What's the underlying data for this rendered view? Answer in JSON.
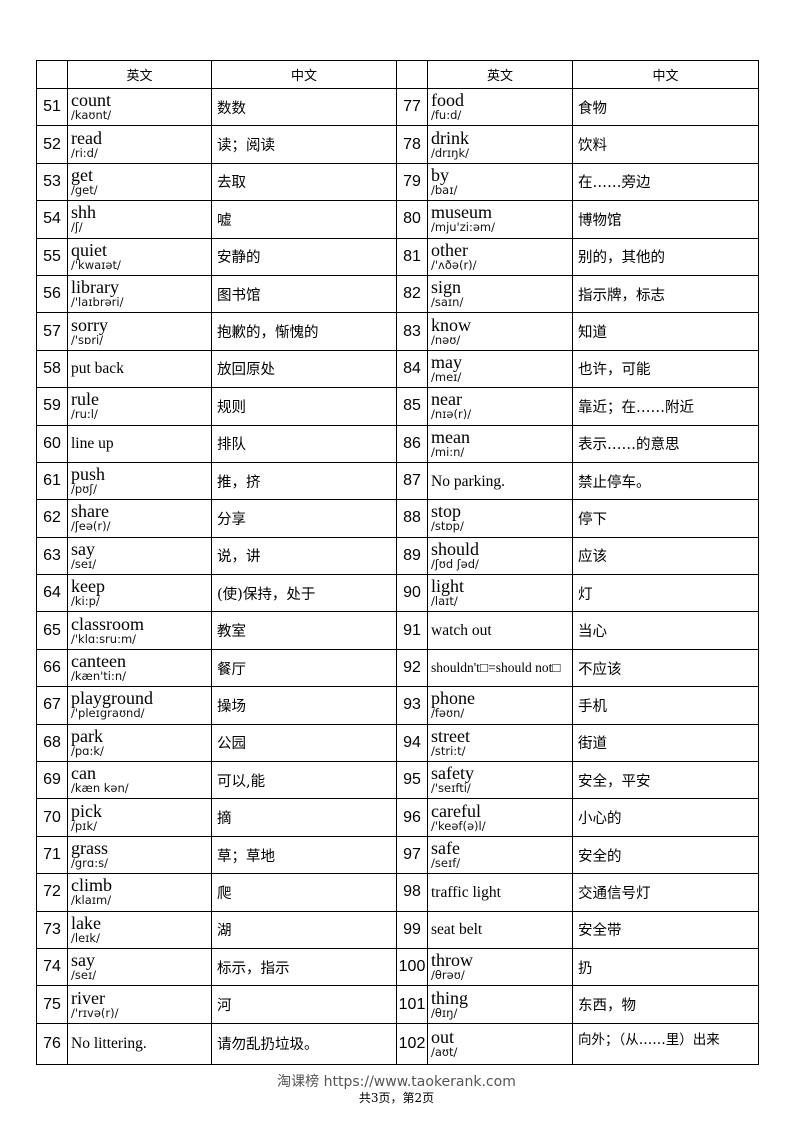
{
  "header": {
    "col_en": "英文",
    "col_cn": "中文"
  },
  "left": [
    {
      "num": "51",
      "word": "count",
      "phon": "/kaʊnt/",
      "cn": "数数"
    },
    {
      "num": "52",
      "word": "read",
      "phon": "/ri:d/",
      "cn": "读；阅读"
    },
    {
      "num": "53",
      "word": "get",
      "phon": "/get/",
      "cn": "去取"
    },
    {
      "num": "54",
      "word": "shh",
      "phon": "/ʃ/",
      "cn": "嘘"
    },
    {
      "num": "55",
      "word": "quiet",
      "phon": "/'kwaɪət/",
      "cn": "安静的"
    },
    {
      "num": "56",
      "word": "library",
      "phon": "/'laɪbrəri/",
      "cn": "图书馆"
    },
    {
      "num": "57",
      "word": "sorry",
      "phon": "/'sɒri/",
      "cn": "抱歉的，惭愧的"
    },
    {
      "num": "58",
      "word": "put back",
      "phon": "",
      "cn": "放回原处"
    },
    {
      "num": "59",
      "word": "rule",
      "phon": "/ru:l/",
      "cn": "规则"
    },
    {
      "num": "60",
      "word": "line up",
      "phon": "",
      "cn": "排队"
    },
    {
      "num": "61",
      "word": "push",
      "phon": "/pʊʃ/",
      "cn": "推，挤"
    },
    {
      "num": "62",
      "word": "share",
      "phon": "/ʃeə(r)/",
      "cn": "分享"
    },
    {
      "num": "63",
      "word": "say",
      "phon": "/seɪ/",
      "cn": "说，讲"
    },
    {
      "num": "64",
      "word": "keep",
      "phon": "/ki:p/",
      "cn": "(使)保持，处于"
    },
    {
      "num": "65",
      "word": "classroom",
      "phon": "/'klɑ:sru:m/",
      "cn": "教室"
    },
    {
      "num": "66",
      "word": "canteen",
      "phon": "/kæn'ti:n/",
      "cn": "餐厅"
    },
    {
      "num": "67",
      "word": "playground",
      "phon": "/'pleɪgraʊnd/",
      "cn": "操场"
    },
    {
      "num": "68",
      "word": "park",
      "phon": "/pɑ:k/",
      "cn": "公园"
    },
    {
      "num": "69",
      "word": "can",
      "phon": "/kæn kən/",
      "cn": "可以,能"
    },
    {
      "num": "70",
      "word": "pick",
      "phon": "/pɪk/",
      "cn": "摘"
    },
    {
      "num": "71",
      "word": "grass",
      "phon": "/grɑ:s/",
      "cn": "草；草地"
    },
    {
      "num": "72",
      "word": "climb",
      "phon": "/klaɪm/",
      "cn": "爬"
    },
    {
      "num": "73",
      "word": "lake",
      "phon": "/leɪk/",
      "cn": "湖"
    },
    {
      "num": "74",
      "word": "say",
      "phon": "/seɪ/",
      "cn": "标示，指示"
    },
    {
      "num": "75",
      "word": "river",
      "phon": "/'rɪvə(r)/",
      "cn": "河"
    },
    {
      "num": "76",
      "word": "No littering.",
      "phon": "",
      "cn": "请勿乱扔垃圾。"
    }
  ],
  "right": [
    {
      "num": "77",
      "word": "food",
      "phon": "/fu:d/",
      "cn": "食物"
    },
    {
      "num": "78",
      "word": "drink",
      "phon": "/drɪŋk/",
      "cn": "饮料"
    },
    {
      "num": "79",
      "word": "by",
      "phon": "/baɪ/",
      "cn": "在……旁边"
    },
    {
      "num": "80",
      "word": "museum",
      "phon": "/mju'zi:əm/",
      "cn": "博物馆"
    },
    {
      "num": "81",
      "word": "other",
      "phon": "/'ʌðə(r)/",
      "cn": "别的，其他的"
    },
    {
      "num": "82",
      "word": "sign",
      "phon": "/saɪn/",
      "cn": "指示牌，标志"
    },
    {
      "num": "83",
      "word": "know",
      "phon": "/nəʊ/",
      "cn": "知道"
    },
    {
      "num": "84",
      "word": "may",
      "phon": "/meɪ/",
      "cn": "也许，可能"
    },
    {
      "num": "85",
      "word": "near",
      "phon": "/nɪə(r)/",
      "cn": "靠近；在……附近"
    },
    {
      "num": "86",
      "word": "mean",
      "phon": "/mi:n/",
      "cn": "表示……的意思"
    },
    {
      "num": "87",
      "word": "No parking.",
      "phon": "",
      "cn": "禁止停车。"
    },
    {
      "num": "88",
      "word": "stop",
      "phon": "/stɒp/",
      "cn": "停下"
    },
    {
      "num": "89",
      "word": "should",
      "phon": "/ʃʊd ʃəd/",
      "cn": "应该"
    },
    {
      "num": "90",
      "word": "light",
      "phon": "/laɪt/",
      "cn": "灯"
    },
    {
      "num": "91",
      "word": "watch out",
      "phon": "",
      "cn": "当心"
    },
    {
      "num": "92",
      "word": "shouldn't□=should not□",
      "phon": "",
      "cn": "不应该"
    },
    {
      "num": "93",
      "word": "phone",
      "phon": "/fəʊn/",
      "cn": "手机"
    },
    {
      "num": "94",
      "word": "street",
      "phon": "/stri:t/",
      "cn": "街道"
    },
    {
      "num": "95",
      "word": "safety",
      "phon": "/'seɪfti/",
      "cn": "安全，平安"
    },
    {
      "num": "96",
      "word": "careful",
      "phon": "/'keəf(ə)l/",
      "cn": "小心的"
    },
    {
      "num": "97",
      "word": "safe",
      "phon": "/seɪf/",
      "cn": "安全的"
    },
    {
      "num": "98",
      "word": "traffic light",
      "phon": "",
      "cn": "交通信号灯"
    },
    {
      "num": "99",
      "word": "seat belt",
      "phon": "",
      "cn": "安全带"
    },
    {
      "num": "100",
      "word": "throw",
      "phon": "/θrəʊ/",
      "cn": "扔"
    },
    {
      "num": "101",
      "word": "thing",
      "phon": "/θɪŋ/",
      "cn": "东西，物"
    },
    {
      "num": "102",
      "word": "out",
      "phon": "/aʊt/",
      "cn": "向外；（从……里）出来"
    }
  ],
  "footer": {
    "site": "淘课榜 https://www.taokerank.com",
    "page": "共3页，第2页"
  }
}
